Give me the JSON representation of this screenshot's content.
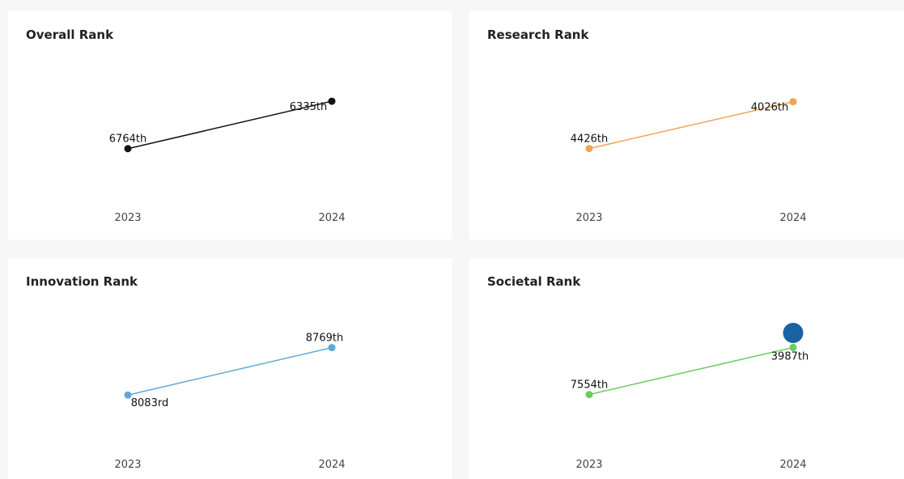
{
  "chart_data": [
    {
      "type": "line",
      "title": "Overall Rank",
      "categories": [
        "2023",
        "2024"
      ],
      "values": [
        6764,
        6335
      ],
      "value_labels": [
        "6764th",
        "6335th"
      ],
      "color": "#111111",
      "ylim": [
        7000,
        6100
      ]
    },
    {
      "type": "line",
      "title": "Research Rank",
      "categories": [
        "2023",
        "2024"
      ],
      "values": [
        4426,
        4026
      ],
      "value_labels": [
        "4426th",
        "4026th"
      ],
      "color": "#f4a24f",
      "ylim": [
        4650,
        3800
      ]
    },
    {
      "type": "line",
      "title": "Innovation Rank",
      "categories": [
        "2023",
        "2024"
      ],
      "values": [
        8083,
        8769
      ],
      "value_labels": [
        "8083rd",
        "8769th"
      ],
      "color": "#5fa8d9",
      "ylim": [
        7700,
        9150
      ]
    },
    {
      "type": "line",
      "title": "Societal Rank",
      "categories": [
        "2023",
        "2024"
      ],
      "values": [
        7554,
        3987
      ],
      "value_labels": [
        "7554th",
        "3987th"
      ],
      "color": "#6ccc5f",
      "ylim": [
        9600,
        2000
      ],
      "marker_icon": "map-pin-icon",
      "marker_color": "#1a63a3"
    }
  ]
}
